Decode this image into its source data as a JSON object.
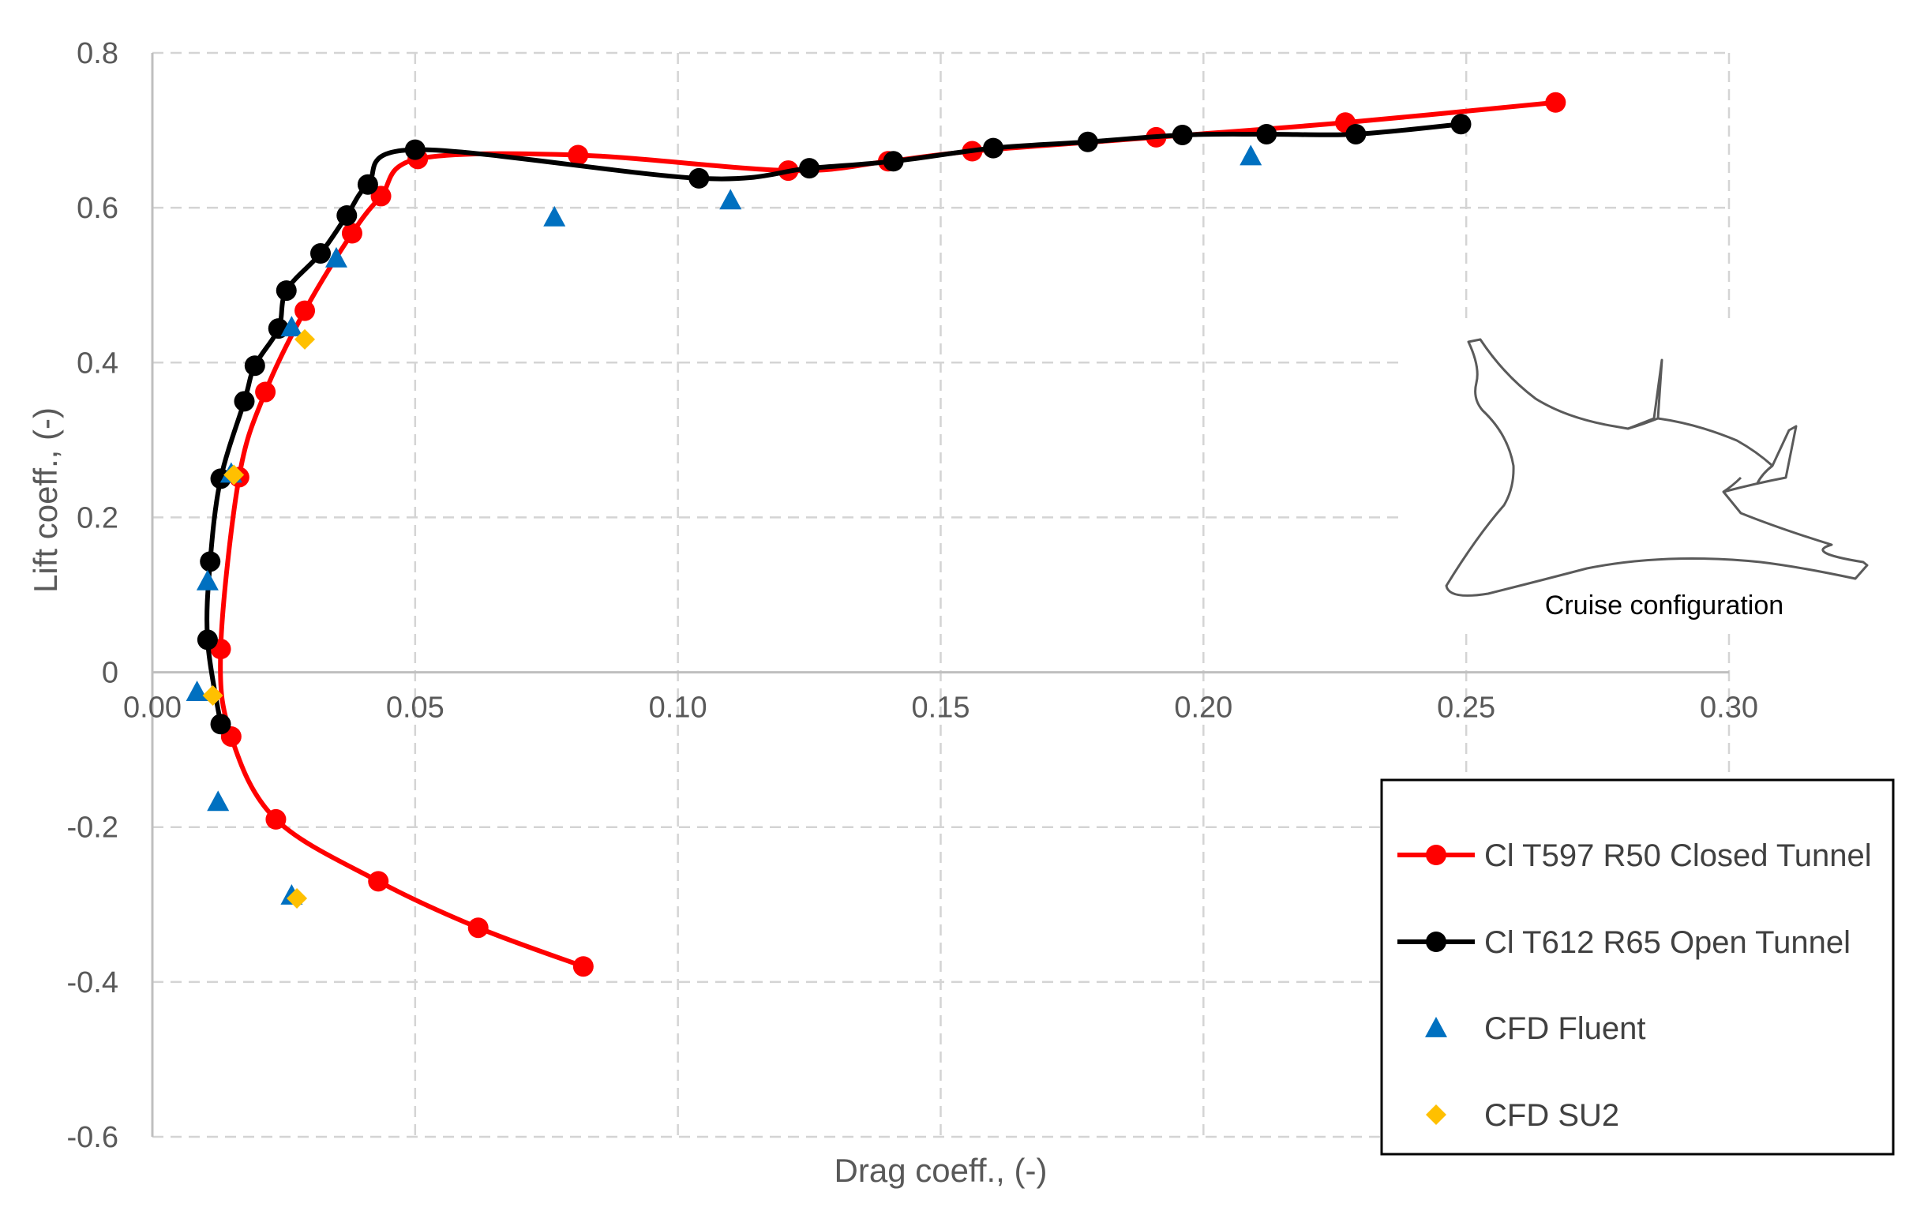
{
  "chart_data": {
    "type": "scatter",
    "title": "",
    "xlabel": "Drag coeff., (-)",
    "ylabel": "Lift coeff., (-)",
    "xlim": [
      0,
      0.3
    ],
    "ylim": [
      -0.6,
      0.8
    ],
    "x_ticks": [
      0.0,
      0.05,
      0.1,
      0.15,
      0.2,
      0.25,
      0.3
    ],
    "x_tick_labels": [
      "0.00",
      "0.05",
      "0.10",
      "0.15",
      "0.20",
      "0.25",
      "0.30"
    ],
    "y_ticks": [
      0.8,
      0.6,
      0.4,
      0.2,
      0,
      -0.2,
      -0.4,
      -0.6
    ],
    "y_tick_labels": [
      "0.8",
      "0.6",
      "0.4",
      "0.2",
      "0",
      "-0.2",
      "-0.4",
      "-0.6"
    ],
    "grid": true,
    "legend_position": "bottom-right",
    "inset": {
      "caption": "Cruise configuration"
    },
    "series": [
      {
        "name": "Cl T597 R50 Closed Tunnel",
        "color": "#ff0000",
        "marker": "circle",
        "line": true,
        "points": [
          [
            0.082,
            -0.38
          ],
          [
            0.062,
            -0.33
          ],
          [
            0.043,
            -0.27
          ],
          [
            0.0235,
            -0.19
          ],
          [
            0.015,
            -0.083
          ],
          [
            0.013,
            0.03
          ],
          [
            0.0165,
            0.252
          ],
          [
            0.0215,
            0.362
          ],
          [
            0.029,
            0.467
          ],
          [
            0.038,
            0.567
          ],
          [
            0.0435,
            0.615
          ],
          [
            0.0505,
            0.663
          ],
          [
            0.081,
            0.668
          ],
          [
            0.121,
            0.648
          ],
          [
            0.14,
            0.66
          ],
          [
            0.156,
            0.673
          ],
          [
            0.191,
            0.691
          ],
          [
            0.227,
            0.71
          ],
          [
            0.267,
            0.736
          ]
        ]
      },
      {
        "name": "Cl T612 R65 Open Tunnel",
        "color": "#000000",
        "marker": "circle",
        "line": true,
        "points": [
          [
            0.013,
            -0.067
          ],
          [
            0.0105,
            0.042
          ],
          [
            0.011,
            0.143
          ],
          [
            0.013,
            0.25
          ],
          [
            0.0175,
            0.35
          ],
          [
            0.0195,
            0.396
          ],
          [
            0.024,
            0.444
          ],
          [
            0.0255,
            0.493
          ],
          [
            0.032,
            0.541
          ],
          [
            0.037,
            0.59
          ],
          [
            0.041,
            0.63
          ],
          [
            0.05,
            0.675
          ],
          [
            0.104,
            0.638
          ],
          [
            0.125,
            0.651
          ],
          [
            0.141,
            0.66
          ],
          [
            0.16,
            0.677
          ],
          [
            0.178,
            0.685
          ],
          [
            0.196,
            0.694
          ],
          [
            0.212,
            0.695
          ],
          [
            0.229,
            0.695
          ],
          [
            0.249,
            0.708
          ]
        ]
      },
      {
        "name": "CFD Fluent",
        "color": "#0070c0",
        "marker": "triangle",
        "line": false,
        "points": [
          [
            0.0085,
            -0.025
          ],
          [
            0.0105,
            0.118
          ],
          [
            0.0125,
            -0.167
          ],
          [
            0.015,
            0.257
          ],
          [
            0.0265,
            -0.288
          ],
          [
            0.0265,
            0.446
          ],
          [
            0.035,
            0.535
          ],
          [
            0.0765,
            0.588
          ],
          [
            0.11,
            0.61
          ],
          [
            0.209,
            0.667
          ]
        ]
      },
      {
        "name": "CFD SU2",
        "color": "#ffc000",
        "marker": "diamond",
        "line": false,
        "points": [
          [
            0.0115,
            -0.03
          ],
          [
            0.0155,
            0.255
          ],
          [
            0.0275,
            -0.292
          ],
          [
            0.029,
            0.43
          ]
        ]
      }
    ]
  }
}
